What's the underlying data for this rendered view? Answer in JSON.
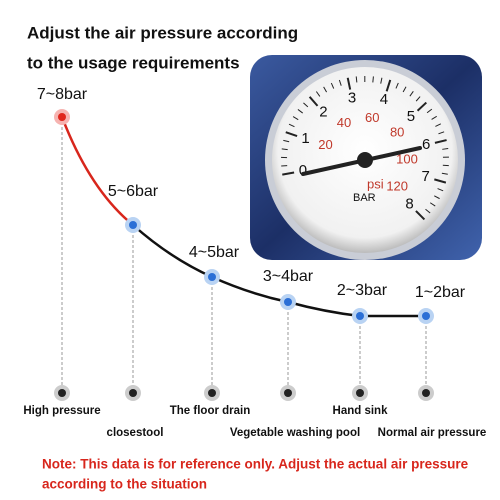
{
  "header": {
    "title_lines": [
      "Adjust the air pressure according",
      "to the usage requirements"
    ]
  },
  "nodes": [
    {
      "pressure": "7~8bar",
      "usage": "High pressure"
    },
    {
      "pressure": "5~6bar",
      "usage": "closestool"
    },
    {
      "pressure": "4~5bar",
      "usage": "The floor drain"
    },
    {
      "pressure": "3~4bar",
      "usage": "Vegetable washing pool"
    },
    {
      "pressure": "2~3bar",
      "usage": "Hand sink"
    },
    {
      "pressure": "1~2bar",
      "usage": "Normal air pressure"
    }
  ],
  "gauge": {
    "bar_labels": [
      "0",
      "1",
      "2",
      "3",
      "4",
      "5",
      "6",
      "7",
      "8"
    ],
    "psi_labels": [
      "20",
      "40",
      "60",
      "80",
      "100",
      "120"
    ],
    "psi_unit": "psi",
    "bar_unit": "BAR"
  },
  "note_lines": [
    "Note: This data is for reference only. Adjust the actual air pressure",
    "according to the situation"
  ]
}
